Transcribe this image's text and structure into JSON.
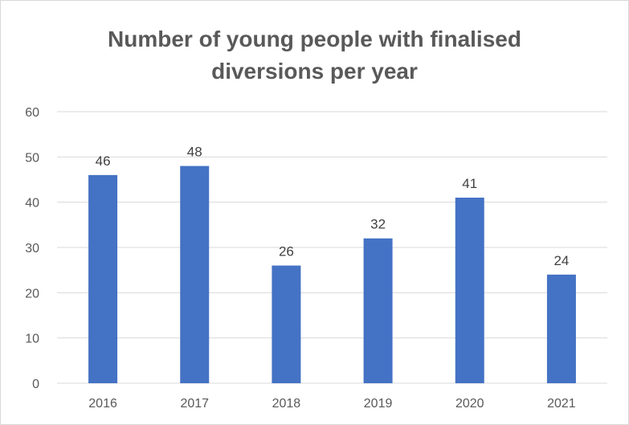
{
  "chart_data": {
    "type": "bar",
    "title_lines": [
      "Number of young people with finalised",
      "diversions per year"
    ],
    "categories": [
      "2016",
      "2017",
      "2018",
      "2019",
      "2020",
      "2021"
    ],
    "values": [
      46,
      48,
      26,
      32,
      41,
      24
    ],
    "data_labels": [
      "46",
      "48",
      "26",
      "32",
      "41",
      "24"
    ],
    "ylim": [
      0,
      60
    ],
    "y_ticks": [
      0,
      10,
      20,
      30,
      40,
      50,
      60
    ],
    "xlabel": "",
    "ylabel": "",
    "grid": "horizontal",
    "legend": "none",
    "bar_color": "#4472c4",
    "grid_color": "#d9d9d9"
  }
}
